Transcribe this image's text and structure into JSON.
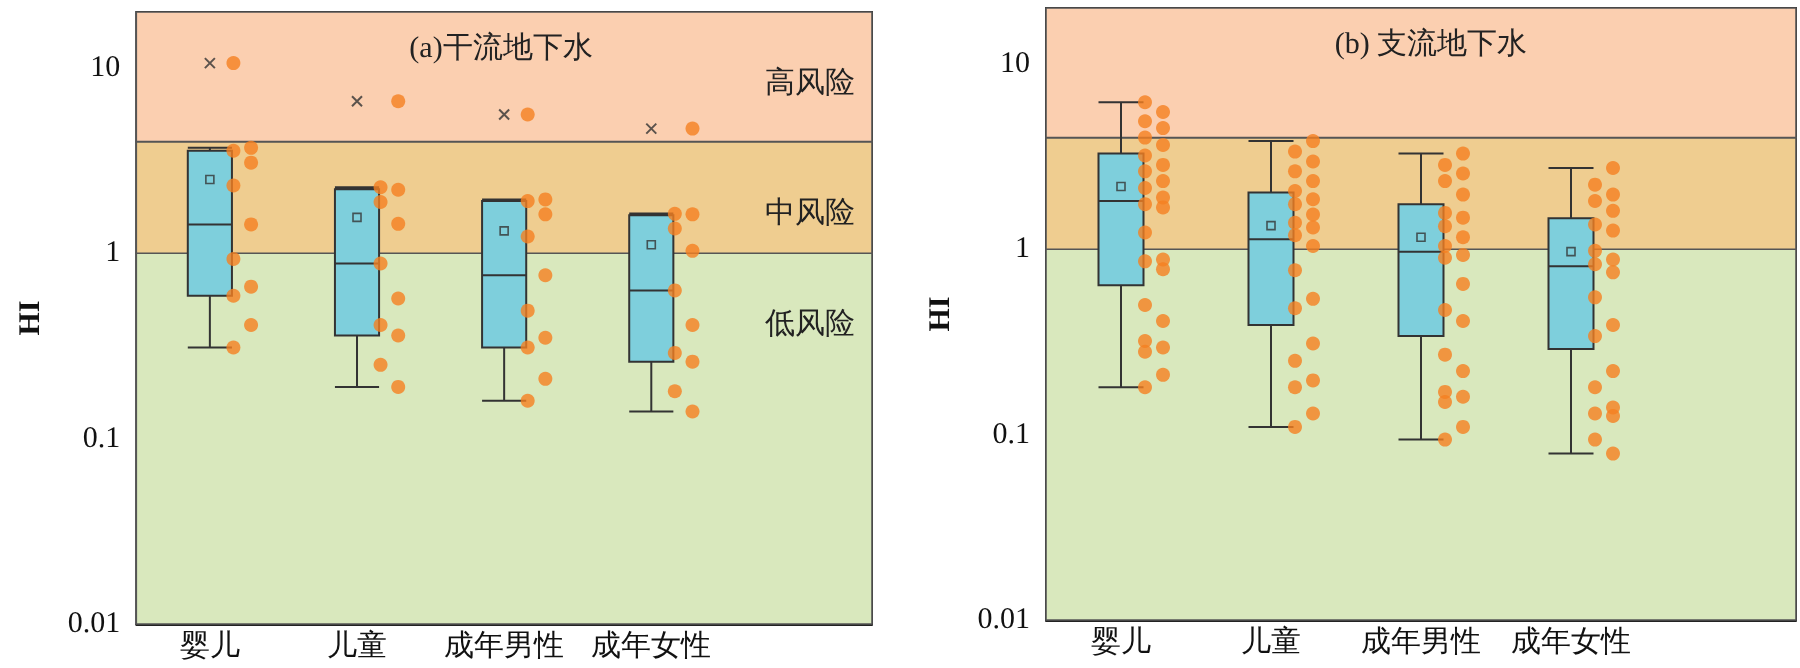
{
  "chart_data": [
    {
      "type": "box",
      "title": "(a)干流地下水",
      "ylabel": "HI",
      "categories": [
        "婴儿",
        "儿童",
        "成年男性",
        "成年女性"
      ],
      "ylim": [
        0.01,
        20
      ],
      "yticks": [
        0.01,
        0.1,
        1,
        10
      ],
      "log": true,
      "grid": false,
      "bands": [
        {
          "axis": "y",
          "from": 0.01,
          "to": 1,
          "label": "低风险",
          "color": "#d9e8bd"
        },
        {
          "axis": "y",
          "from": 1,
          "to": 4,
          "label": "中风险",
          "color": "#efcd90"
        },
        {
          "axis": "y",
          "from": 4,
          "to": 20,
          "label": "高风险",
          "color": "#fbcfb0"
        }
      ],
      "series": [
        {
          "type": "box",
          "color": "#7ecfdc",
          "boxes": [
            {
              "low": 0.31,
              "q1": 0.59,
              "median": 1.43,
              "q3": 3.57,
              "high": 3.7,
              "mean": 2.5,
              "outliers": [
                10.6
              ]
            },
            {
              "low": 0.19,
              "q1": 0.36,
              "median": 0.88,
              "q3": 2.21,
              "high": 2.27,
              "mean": 1.56,
              "outliers": [
                6.6
              ]
            },
            {
              "low": 0.16,
              "q1": 0.31,
              "median": 0.76,
              "q3": 1.91,
              "high": 1.95,
              "mean": 1.32,
              "outliers": [
                5.6
              ]
            },
            {
              "low": 0.14,
              "q1": 0.26,
              "median": 0.63,
              "q3": 1.6,
              "high": 1.64,
              "mean": 1.11,
              "outliers": [
                4.7
              ]
            }
          ]
        },
        {
          "type": "scatter",
          "color": "#f57f20",
          "x": [
            "婴儿",
            "婴儿",
            "婴儿",
            "婴儿",
            "婴儿",
            "婴儿",
            "婴儿",
            "婴儿",
            "婴儿",
            "婴儿",
            "婴儿",
            "儿童",
            "儿童",
            "儿童",
            "儿童",
            "儿童",
            "儿童",
            "儿童",
            "儿童",
            "儿童",
            "儿童",
            "儿童",
            "成年男性",
            "成年男性",
            "成年男性",
            "成年男性",
            "成年男性",
            "成年男性",
            "成年男性",
            "成年男性",
            "成年男性",
            "成年男性",
            "成年男性",
            "成年女性",
            "成年女性",
            "成年女性",
            "成年女性",
            "成年女性",
            "成年女性",
            "成年女性",
            "成年女性",
            "成年女性",
            "成年女性",
            "成年女性"
          ],
          "values": [
            10.6,
            3.7,
            3.57,
            3.08,
            2.32,
            1.43,
            0.93,
            0.66,
            0.59,
            0.41,
            0.31,
            6.6,
            2.27,
            2.2,
            1.89,
            1.44,
            0.88,
            0.57,
            0.41,
            0.36,
            0.25,
            0.19,
            5.6,
            1.95,
            1.91,
            1.62,
            1.23,
            0.76,
            0.49,
            0.35,
            0.31,
            0.21,
            0.16,
            4.7,
            1.63,
            1.62,
            1.36,
            1.03,
            0.63,
            0.41,
            0.29,
            0.26,
            0.18,
            0.14
          ]
        }
      ]
    },
    {
      "type": "box",
      "title": "(b) 支流地下水",
      "ylabel": "HI",
      "categories": [
        "婴儿",
        "儿童",
        "成年男性",
        "成年女性"
      ],
      "ylim": [
        0.01,
        20
      ],
      "yticks": [
        0.01,
        0.1,
        1,
        10
      ],
      "log": true,
      "grid": false,
      "bands": [
        {
          "axis": "y",
          "from": 0.01,
          "to": 1,
          "color": "#d9e8bd"
        },
        {
          "axis": "y",
          "from": 1,
          "to": 4,
          "color": "#efcd90"
        },
        {
          "axis": "y",
          "from": 4,
          "to": 20,
          "color": "#fbcfb0"
        }
      ],
      "series": [
        {
          "type": "box",
          "color": "#7ecfdc",
          "boxes": [
            {
              "low": 0.18,
              "q1": 0.64,
              "median": 1.82,
              "q3": 3.28,
              "high": 6.2,
              "mean": 2.18
            },
            {
              "low": 0.11,
              "q1": 0.39,
              "median": 1.13,
              "q3": 2.02,
              "high": 3.83,
              "mean": 1.34
            },
            {
              "low": 0.094,
              "q1": 0.34,
              "median": 0.97,
              "q3": 1.75,
              "high": 3.28,
              "mean": 1.16
            },
            {
              "low": 0.079,
              "q1": 0.29,
              "median": 0.81,
              "q3": 1.47,
              "high": 2.74,
              "mean": 0.97
            }
          ]
        },
        {
          "type": "scatter",
          "color": "#f57f20",
          "x": [
            "婴儿",
            "婴儿",
            "婴儿",
            "婴儿",
            "婴儿",
            "婴儿",
            "婴儿",
            "婴儿",
            "婴儿",
            "婴儿",
            "婴儿",
            "婴儿",
            "婴儿",
            "婴儿",
            "婴儿",
            "婴儿",
            "婴儿",
            "婴儿",
            "婴儿",
            "婴儿",
            "婴儿",
            "婴儿",
            "婴儿",
            "婴儿",
            "婴儿",
            "儿童",
            "儿童",
            "儿童",
            "儿童",
            "儿童",
            "儿童",
            "儿童",
            "儿童",
            "儿童",
            "儿童",
            "儿童",
            "儿童",
            "儿童",
            "儿童",
            "儿童",
            "儿童",
            "儿童",
            "儿童",
            "儿童",
            "儿童",
            "儿童",
            "儿童",
            "成年男性",
            "成年男性",
            "成年男性",
            "成年男性",
            "成年男性",
            "成年男性",
            "成年男性",
            "成年男性",
            "成年男性",
            "成年男性",
            "成年男性",
            "成年男性",
            "成年男性",
            "成年男性",
            "成年男性",
            "成年男性",
            "成年男性",
            "成年男性",
            "成年男性",
            "成年男性",
            "成年男性",
            "成年男性",
            "成年女性",
            "成年女性",
            "成年女性",
            "成年女性",
            "成年女性",
            "成年女性",
            "成年女性",
            "成年女性",
            "成年女性",
            "成年女性",
            "成年女性",
            "成年女性",
            "成年女性",
            "成年女性",
            "成年女性",
            "成年女性",
            "成年女性",
            "成年女性",
            "成年女性",
            "成年女性",
            "成年女性"
          ],
          "values": [
            6.2,
            5.5,
            4.9,
            4.5,
            4.0,
            3.65,
            3.2,
            2.85,
            2.63,
            2.33,
            2.14,
            1.9,
            1.75,
            1.68,
            1.23,
            0.88,
            0.86,
            0.78,
            0.5,
            0.41,
            0.32,
            0.295,
            0.28,
            0.21,
            0.18,
            3.83,
            3.36,
            2.97,
            2.63,
            2.33,
            2.06,
            1.86,
            1.75,
            1.54,
            1.39,
            1.31,
            1.19,
            1.04,
            0.77,
            0.54,
            0.48,
            0.31,
            0.25,
            0.196,
            0.18,
            0.13,
            0.11,
            3.28,
            2.85,
            2.56,
            2.33,
            1.97,
            1.57,
            1.48,
            1.33,
            1.16,
            1.04,
            0.93,
            0.9,
            0.65,
            0.47,
            0.41,
            0.27,
            0.22,
            0.17,
            0.16,
            0.15,
            0.11,
            0.094,
            2.74,
            2.23,
            1.97,
            1.82,
            1.61,
            1.36,
            1.26,
            0.98,
            0.88,
            0.83,
            0.75,
            0.55,
            0.39,
            0.34,
            0.22,
            0.18,
            0.14,
            0.13,
            0.126,
            0.094,
            0.079
          ]
        }
      ]
    }
  ]
}
